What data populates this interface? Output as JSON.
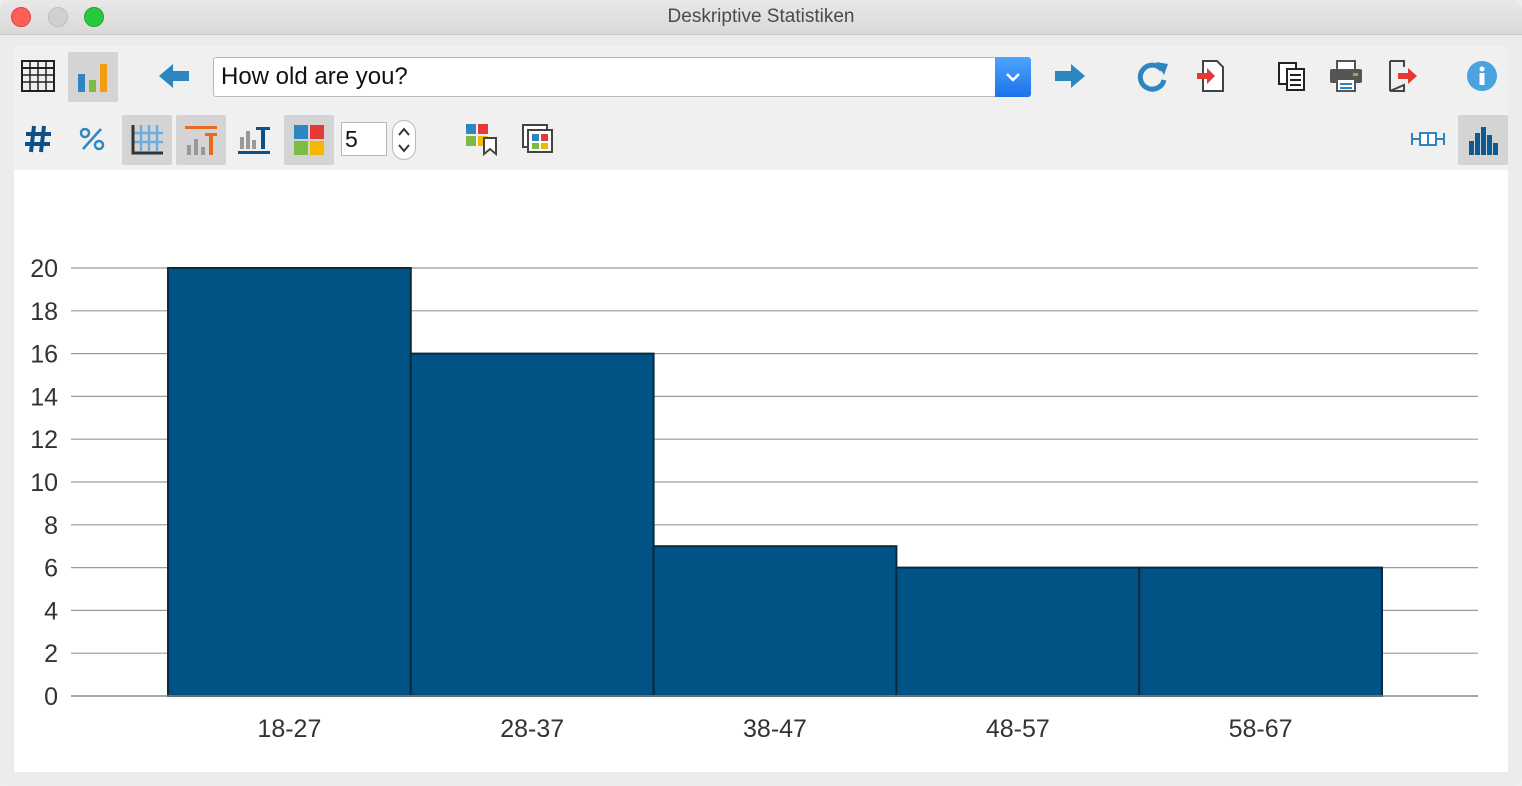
{
  "window": {
    "title": "Deskriptive Statistiken"
  },
  "toolbar": {
    "question_value": "How old are you?",
    "classes_value": "5",
    "icons": [
      "table-icon",
      "bar-chart-icon",
      "arrow-left-icon",
      "chevron-down-icon",
      "arrow-right-icon",
      "refresh-icon",
      "import-icon",
      "copy-icon",
      "print-icon",
      "export-icon",
      "info-icon",
      "hash-icon",
      "percent-icon",
      "grid-icon",
      "top-label-icon",
      "bar-label-icon",
      "color-scheme-icon",
      "color-bookmark-icon",
      "color-window-icon",
      "boxplot-icon",
      "histogram-icon"
    ]
  },
  "colors": {
    "bar_fill": "#005384",
    "bar_stroke": "#0b2a40",
    "accent_blue": "#2e86c1"
  },
  "chart_data": {
    "type": "bar",
    "categories": [
      "18-27",
      "28-37",
      "38-47",
      "48-57",
      "58-67"
    ],
    "values": [
      20,
      16,
      7,
      6,
      6
    ],
    "title": "",
    "xlabel": "",
    "ylabel": "",
    "ylim": [
      0,
      20
    ],
    "yticks": [
      0,
      2,
      4,
      6,
      8,
      10,
      12,
      14,
      16,
      18,
      20
    ],
    "grid": true,
    "legend": "none"
  }
}
